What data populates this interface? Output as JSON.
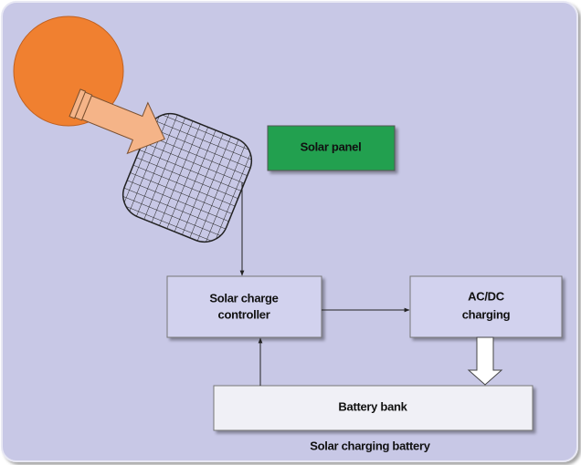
{
  "nodes": [
    {
      "label": "Solar panel"
    },
    {
      "lines": [
        "Solar charge",
        "controller"
      ]
    },
    {
      "lines": [
        "AC/DC",
        "charging"
      ]
    },
    {
      "label": "Battery bank"
    }
  ],
  "caption": "Solar charging battery"
}
